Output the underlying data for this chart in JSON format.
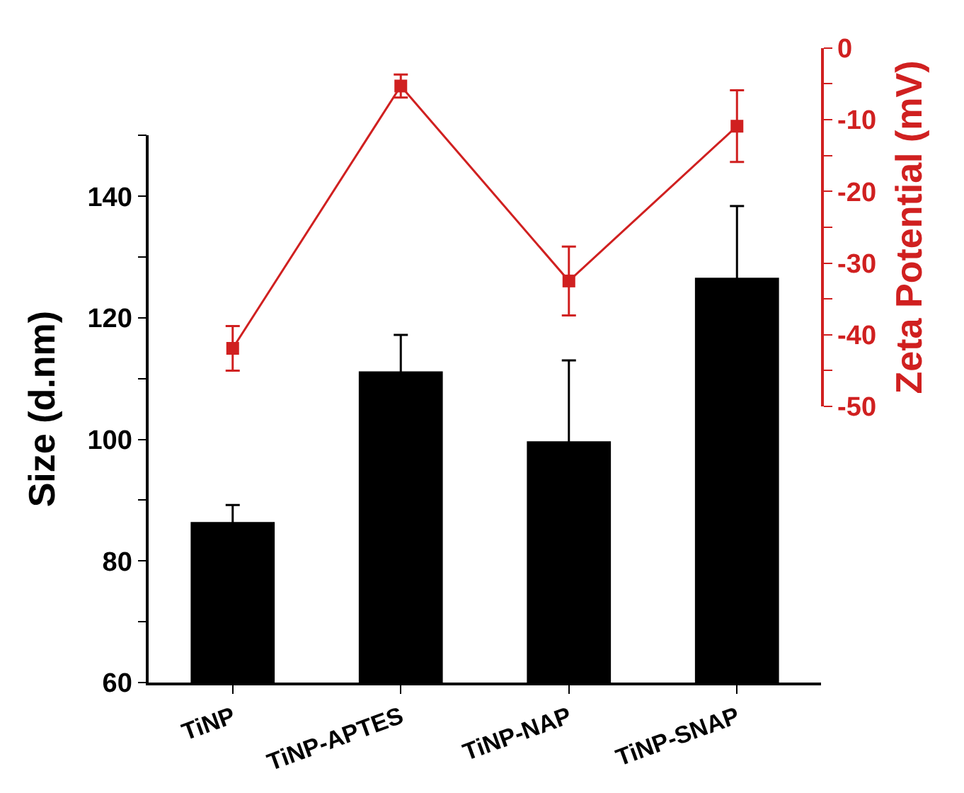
{
  "chart_data": {
    "type": "bar",
    "ylabel": "Size (d.nm)",
    "y2label": "Zeta Potential (mV)",
    "categories": [
      "TiNP",
      "TiNP-APTES",
      "TiNP-NAP",
      "TiNP-SNAP"
    ],
    "series": [
      {
        "color": "#000000",
        "values": [
          86.4,
          111.2,
          99.7,
          126.6
        ],
        "errors": [
          2.8,
          6.0,
          13.3,
          11.8
        ]
      },
      {
        "type": "line",
        "axis": "y2",
        "color": "#d02020",
        "marker": "square",
        "line_style": "solid",
        "values": [
          -41.9,
          -5.3,
          -32.5,
          -10.9
        ],
        "errors": [
          3.1,
          1.6,
          4.8,
          5.0
        ]
      }
    ],
    "ylim": [
      60,
      150
    ],
    "yticks": [
      60,
      {
        "value": 70,
        "label": null
      },
      80,
      {
        "value": 90,
        "label": null
      },
      100,
      {
        "value": 110,
        "label": null
      },
      120,
      {
        "value": 130,
        "label": null
      },
      140,
      {
        "value": 150,
        "label": null
      }
    ],
    "y2lim": [
      -50,
      0
    ],
    "y2ticks": [
      -50,
      {
        "value": -45,
        "label": null
      },
      -40,
      {
        "value": -35,
        "label": null
      },
      -30,
      {
        "value": -25,
        "label": null
      },
      -20,
      {
        "value": -15,
        "label": null
      },
      -10,
      {
        "value": -5,
        "label": null
      },
      0
    ],
    "grid": false
  }
}
